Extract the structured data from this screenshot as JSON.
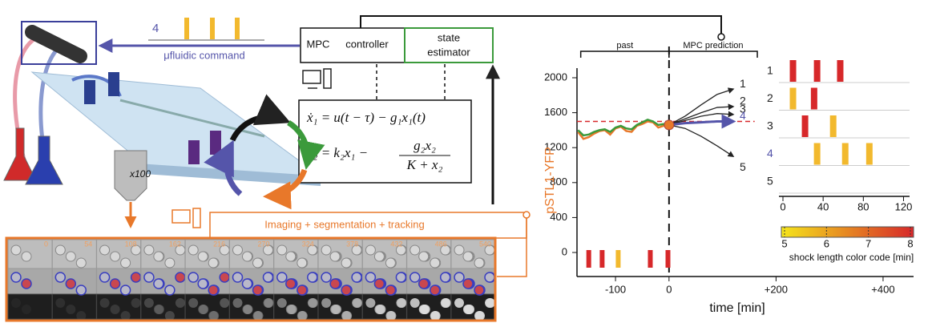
{
  "diagram": {
    "command_pulse_label": "4",
    "command_label": "μfluidic command",
    "controller": [
      "MPC",
      "controller"
    ],
    "estimator": [
      "state",
      "estimator"
    ],
    "equations": [
      "ẋ₁ = u(t − τ) − g₁x₁(t)",
      "ẋ₂ = k₂x₁ −",
      "g₂x₂",
      "K + x₂"
    ],
    "objective": "x100",
    "imaging_label": "Imaging + segmentation + tracking",
    "frame_times": [
      "0",
      "54",
      "108",
      "162",
      "216",
      "270",
      "324",
      "378",
      "432",
      "486",
      "540"
    ]
  },
  "chart_data": [
    {
      "type": "line",
      "ylabel": "pSTL1-YFP",
      "xlabel": "time [min]",
      "periods": [
        "past",
        "MPC prediction"
      ],
      "xlim": [
        -172,
        457
      ],
      "ylim": [
        -275,
        2110
      ],
      "xticks": [
        {
          "value": -100,
          "label": "-100"
        },
        0,
        {
          "value": 200,
          "label": "+200"
        },
        {
          "value": 400,
          "label": "+400"
        }
      ],
      "yticks": [
        0,
        400,
        800,
        1200,
        1600,
        2000
      ],
      "threshold": 1500,
      "threshold_color": "#d7282a",
      "series": [
        {
          "color": "#e8782a",
          "x": [
            -170,
            -160,
            -150,
            -140,
            -130,
            -120,
            -110,
            -100,
            -90,
            -80,
            -70,
            -60,
            -50,
            -40,
            -30,
            -20,
            -10,
            0
          ],
          "values": [
            1380,
            1300,
            1320,
            1360,
            1390,
            1400,
            1350,
            1420,
            1440,
            1390,
            1380,
            1450,
            1470,
            1500,
            1490,
            1430,
            1450,
            1460
          ]
        },
        {
          "color": "#3b9a3b",
          "x": [
            -170,
            -160,
            -150,
            -140,
            -130,
            -120,
            -110,
            -100,
            -90,
            -80,
            -70,
            -60,
            -50,
            -40,
            -30,
            -20,
            -10,
            0
          ],
          "values": [
            1400,
            1340,
            1350,
            1380,
            1400,
            1410,
            1380,
            1430,
            1450,
            1420,
            1410,
            1460,
            1490,
            1520,
            1500,
            1460,
            1470,
            1460
          ]
        },
        {
          "name": "1",
          "color": "#222222",
          "x": [
            0,
            30,
            60,
            90,
            120
          ],
          "values": [
            1460,
            1560,
            1690,
            1810,
            1870
          ]
        },
        {
          "name": "2",
          "color": "#222222",
          "x": [
            0,
            30,
            60,
            90,
            120
          ],
          "values": [
            1460,
            1530,
            1600,
            1660,
            1670
          ]
        },
        {
          "name": "3",
          "color": "#222222",
          "x": [
            0,
            30,
            60,
            90,
            120
          ],
          "values": [
            1460,
            1510,
            1560,
            1590,
            1580
          ]
        },
        {
          "name": "4",
          "color": "#5555aa",
          "x": [
            0,
            30,
            60,
            90,
            120
          ],
          "values": [
            1460,
            1480,
            1490,
            1500,
            1500
          ]
        },
        {
          "name": "5",
          "color": "#222222",
          "x": [
            0,
            30,
            60,
            90,
            120
          ],
          "values": [
            1460,
            1420,
            1330,
            1220,
            1100
          ]
        }
      ],
      "marker": {
        "x": 0,
        "value": 1460,
        "color": "#e8782a"
      },
      "shocks": {
        "x": [
          -150,
          -125,
          -95,
          -35,
          -2
        ],
        "colors": [
          "#d7282a",
          "#d7282a",
          "#f2b92e",
          "#d7282a",
          "#d7282a"
        ]
      }
    },
    {
      "type": "schedule",
      "xlim": [
        0,
        126
      ],
      "xticks": [
        0,
        40,
        80,
        120
      ],
      "series": [
        {
          "name": "1",
          "color": "#222222",
          "values": [
            10,
            34,
            57
          ],
          "colors": [
            "#d7282a",
            "#d7282a",
            "#d7282a"
          ]
        },
        {
          "name": "2",
          "color": "#222222",
          "values": [
            10,
            31
          ],
          "colors": [
            "#f2b92e",
            "#d7282a"
          ]
        },
        {
          "name": "3",
          "color": "#222222",
          "values": [
            22,
            50
          ],
          "colors": [
            "#d7282a",
            "#f2b92e"
          ]
        },
        {
          "name": "4",
          "color": "#5555aa",
          "values": [
            34,
            62,
            86
          ],
          "colors": [
            "#f2b92e",
            "#f2b92e",
            "#f2b92e"
          ]
        },
        {
          "name": "5",
          "color": "#222222",
          "values": [],
          "colors": []
        }
      ],
      "colorbar": {
        "label": "shock length color code [min]",
        "lim": [
          5,
          8
        ],
        "ticks": [
          5,
          6,
          7,
          8
        ],
        "colors": [
          "#f5e51b",
          "#d7282a"
        ]
      }
    }
  ]
}
